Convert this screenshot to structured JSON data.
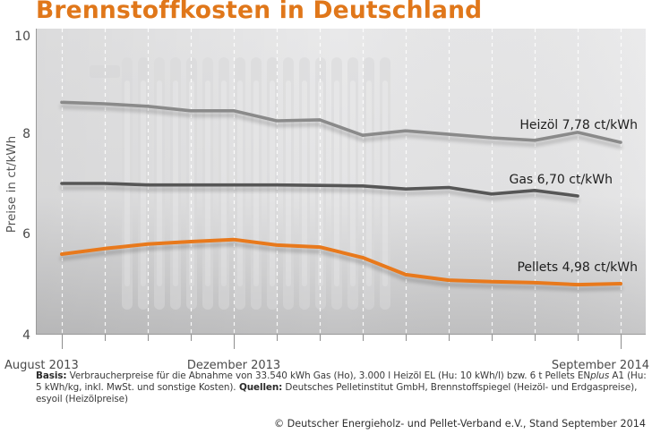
{
  "chart_data": {
    "type": "line",
    "title": "Brennstoffkosten in Deutschland",
    "xlabel": "",
    "ylabel": "Preise in ct/kWh",
    "ylim": [
      4,
      10
    ],
    "yticks": [
      4,
      6,
      8,
      10
    ],
    "x": [
      "2013-08",
      "2013-09",
      "2013-10",
      "2013-11",
      "2013-12",
      "2014-01",
      "2014-02",
      "2014-03",
      "2014-04",
      "2014-05",
      "2014-06",
      "2014-07",
      "2014-08",
      "2014-09"
    ],
    "x_tick_labels": [
      {
        "index": 0,
        "label": "August 2013"
      },
      {
        "index": 4,
        "label": "Dezember 2013"
      },
      {
        "index": 13,
        "label": "September 2014"
      }
    ],
    "grid": "vertical-dashed",
    "series": [
      {
        "name": "Heizöl",
        "label": "Heizöl  7,78 ct/kWh",
        "color": "#8a8a8a",
        "values": [
          8.62,
          8.59,
          8.54,
          8.45,
          8.45,
          8.25,
          8.27,
          7.96,
          8.05,
          7.98,
          7.91,
          7.86,
          8.02,
          7.82
        ]
      },
      {
        "name": "Gas",
        "label": "Gas  6,70 ct/kWh",
        "color": "#565656",
        "values": [
          7.0,
          7.0,
          6.97,
          6.97,
          6.97,
          6.97,
          6.96,
          6.95,
          6.89,
          6.92,
          6.79,
          6.86,
          6.75,
          null
        ]
      },
      {
        "name": "Pellets",
        "label": "Pellets  4,98 ct/kWh",
        "color": "#e8791c",
        "values": [
          5.59,
          5.7,
          5.79,
          5.84,
          5.88,
          5.77,
          5.73,
          5.52,
          5.18,
          5.07,
          5.04,
          5.02,
          4.98,
          5.0
        ]
      }
    ]
  },
  "footnote": {
    "basis_label": "Basis:",
    "basis_text": " Verbraucherpreise für die Abnahme von 33.540 kWh Gas (Ho), 3.000 l Heizöl EL (Hu: 10 kWh/l) bzw. 6 t Pellets EN",
    "enplus_italic": "plus",
    "basis_text2": " A1 (Hu: 5 kWh/kg, inkl. MwSt. und sonstige Kosten).",
    "sources_label": " Quellen:",
    "sources_text": " Deutsches Pelletinstitut GmbH, Brennstoffspiegel (Heizöl- und Erdgaspreise), esyoil (Heizölpreise)"
  },
  "copyright": "© Deutscher Energieholz- und Pellet-Verband e.V., Stand September 2014"
}
